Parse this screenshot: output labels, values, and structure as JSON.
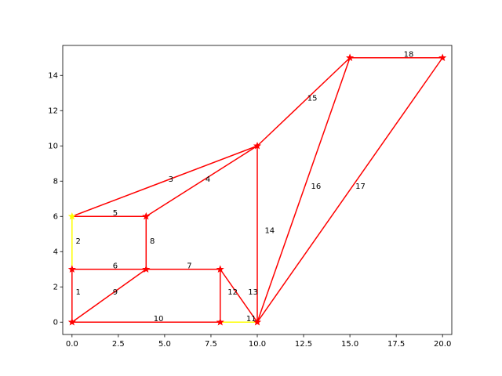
{
  "chart_data": {
    "type": "line",
    "title": "",
    "xlabel": "",
    "ylabel": "",
    "xlim": [
      -0.5,
      20.5
    ],
    "ylim": [
      -0.7,
      15.7
    ],
    "x_ticks": [
      0.0,
      2.5,
      5.0,
      7.5,
      10.0,
      12.5,
      15.0,
      17.5,
      20.0
    ],
    "x_tick_labels": [
      "0.0",
      "2.5",
      "5.0",
      "7.5",
      "10.0",
      "12.5",
      "15.0",
      "17.5",
      "20.0"
    ],
    "y_ticks": [
      0,
      2,
      4,
      6,
      8,
      10,
      12,
      14
    ],
    "y_tick_labels": [
      "0",
      "2",
      "4",
      "6",
      "8",
      "10",
      "12",
      "14"
    ],
    "grid": false,
    "legend": "none",
    "colors": {
      "edge": "#ff0000",
      "highlight": "#ffff00"
    },
    "nodes": [
      {
        "x": 0,
        "y": 0,
        "color": "#ff0000"
      },
      {
        "x": 0,
        "y": 3,
        "color": "#ff0000"
      },
      {
        "x": 0,
        "y": 6,
        "color": "#ffff00"
      },
      {
        "x": 4,
        "y": 6,
        "color": "#ff0000"
      },
      {
        "x": 4,
        "y": 3,
        "color": "#ff0000"
      },
      {
        "x": 8,
        "y": 3,
        "color": "#ff0000"
      },
      {
        "x": 8,
        "y": 0,
        "color": "#ff0000"
      },
      {
        "x": 10,
        "y": 0,
        "color": "#ff0000"
      },
      {
        "x": 10,
        "y": 10,
        "color": "#ff0000"
      },
      {
        "x": 15,
        "y": 15,
        "color": "#ff0000"
      },
      {
        "x": 20,
        "y": 15,
        "color": "#ff0000"
      }
    ],
    "edges": [
      {
        "label": "1",
        "from": [
          0,
          0
        ],
        "to": [
          0,
          3
        ],
        "color": "#ff0000"
      },
      {
        "label": "2",
        "from": [
          0,
          3
        ],
        "to": [
          0,
          6
        ],
        "color": "#ffff00"
      },
      {
        "label": "3",
        "from": [
          0,
          6
        ],
        "to": [
          5,
          8
        ],
        "color": "#ff0000"
      },
      {
        "label": "4",
        "from": [
          5,
          8
        ],
        "to": [
          10,
          10
        ],
        "color": "#ff0000"
      },
      {
        "label": "5",
        "from": [
          0,
          6
        ],
        "to": [
          4,
          6
        ],
        "color": "#ff0000"
      },
      {
        "label": "4",
        "from": [
          4,
          6
        ],
        "to": [
          10,
          10
        ],
        "color": "#ff0000"
      },
      {
        "label": "8",
        "from": [
          4,
          6
        ],
        "to": [
          4,
          3
        ],
        "color": "#ff0000"
      },
      {
        "label": "6",
        "from": [
          0,
          3
        ],
        "to": [
          4,
          3
        ],
        "color": "#ff0000"
      },
      {
        "label": "7",
        "from": [
          4,
          3
        ],
        "to": [
          8,
          3
        ],
        "color": "#ff0000"
      },
      {
        "label": "9",
        "from": [
          0,
          0
        ],
        "to": [
          4,
          3
        ],
        "color": "#ff0000"
      },
      {
        "label": "10",
        "from": [
          0,
          0
        ],
        "to": [
          8,
          0
        ],
        "color": "#ff0000"
      },
      {
        "label": "11",
        "from": [
          8,
          0
        ],
        "to": [
          10,
          0
        ],
        "color": "#ffff00"
      },
      {
        "label": "12",
        "from": [
          8,
          3
        ],
        "to": [
          8,
          0
        ],
        "color": "#ff0000"
      },
      {
        "label": "13",
        "from": [
          8,
          3
        ],
        "to": [
          10,
          0
        ],
        "color": "#ff0000"
      },
      {
        "label": "14",
        "from": [
          10,
          0
        ],
        "to": [
          10,
          10
        ],
        "color": "#ff0000"
      },
      {
        "label": "15",
        "from": [
          10,
          10
        ],
        "to": [
          15,
          15
        ],
        "color": "#ff0000"
      },
      {
        "label": "16",
        "from": [
          10,
          0
        ],
        "to": [
          15,
          15
        ],
        "color": "#ff0000"
      },
      {
        "label": "17",
        "from": [
          10,
          0
        ],
        "to": [
          20,
          15
        ],
        "color": "#ff0000"
      },
      {
        "label": "18",
        "from": [
          15,
          15
        ],
        "to": [
          20,
          15
        ],
        "color": "#ff0000"
      }
    ],
    "edge_labels": [
      {
        "text": "1",
        "x": 0.2,
        "y": 1.7
      },
      {
        "text": "2",
        "x": 0.2,
        "y": 4.6
      },
      {
        "text": "3",
        "x": 5.2,
        "y": 8.1
      },
      {
        "text": "4",
        "x": 7.2,
        "y": 8.1
      },
      {
        "text": "5",
        "x": 2.2,
        "y": 6.2
      },
      {
        "text": "6",
        "x": 2.2,
        "y": 3.2
      },
      {
        "text": "7",
        "x": 6.2,
        "y": 3.2
      },
      {
        "text": "8",
        "x": 4.2,
        "y": 4.6
      },
      {
        "text": "9",
        "x": 2.2,
        "y": 1.7
      },
      {
        "text": "10",
        "x": 4.4,
        "y": 0.2
      },
      {
        "text": "11",
        "x": 9.4,
        "y": 0.2
      },
      {
        "text": "12",
        "x": 8.4,
        "y": 1.7
      },
      {
        "text": "13",
        "x": 9.5,
        "y": 1.7
      },
      {
        "text": "14",
        "x": 10.4,
        "y": 5.2
      },
      {
        "text": "15",
        "x": 12.7,
        "y": 12.7
      },
      {
        "text": "16",
        "x": 12.9,
        "y": 7.7
      },
      {
        "text": "17",
        "x": 15.3,
        "y": 7.7
      },
      {
        "text": "18",
        "x": 17.9,
        "y": 15.2
      }
    ]
  }
}
